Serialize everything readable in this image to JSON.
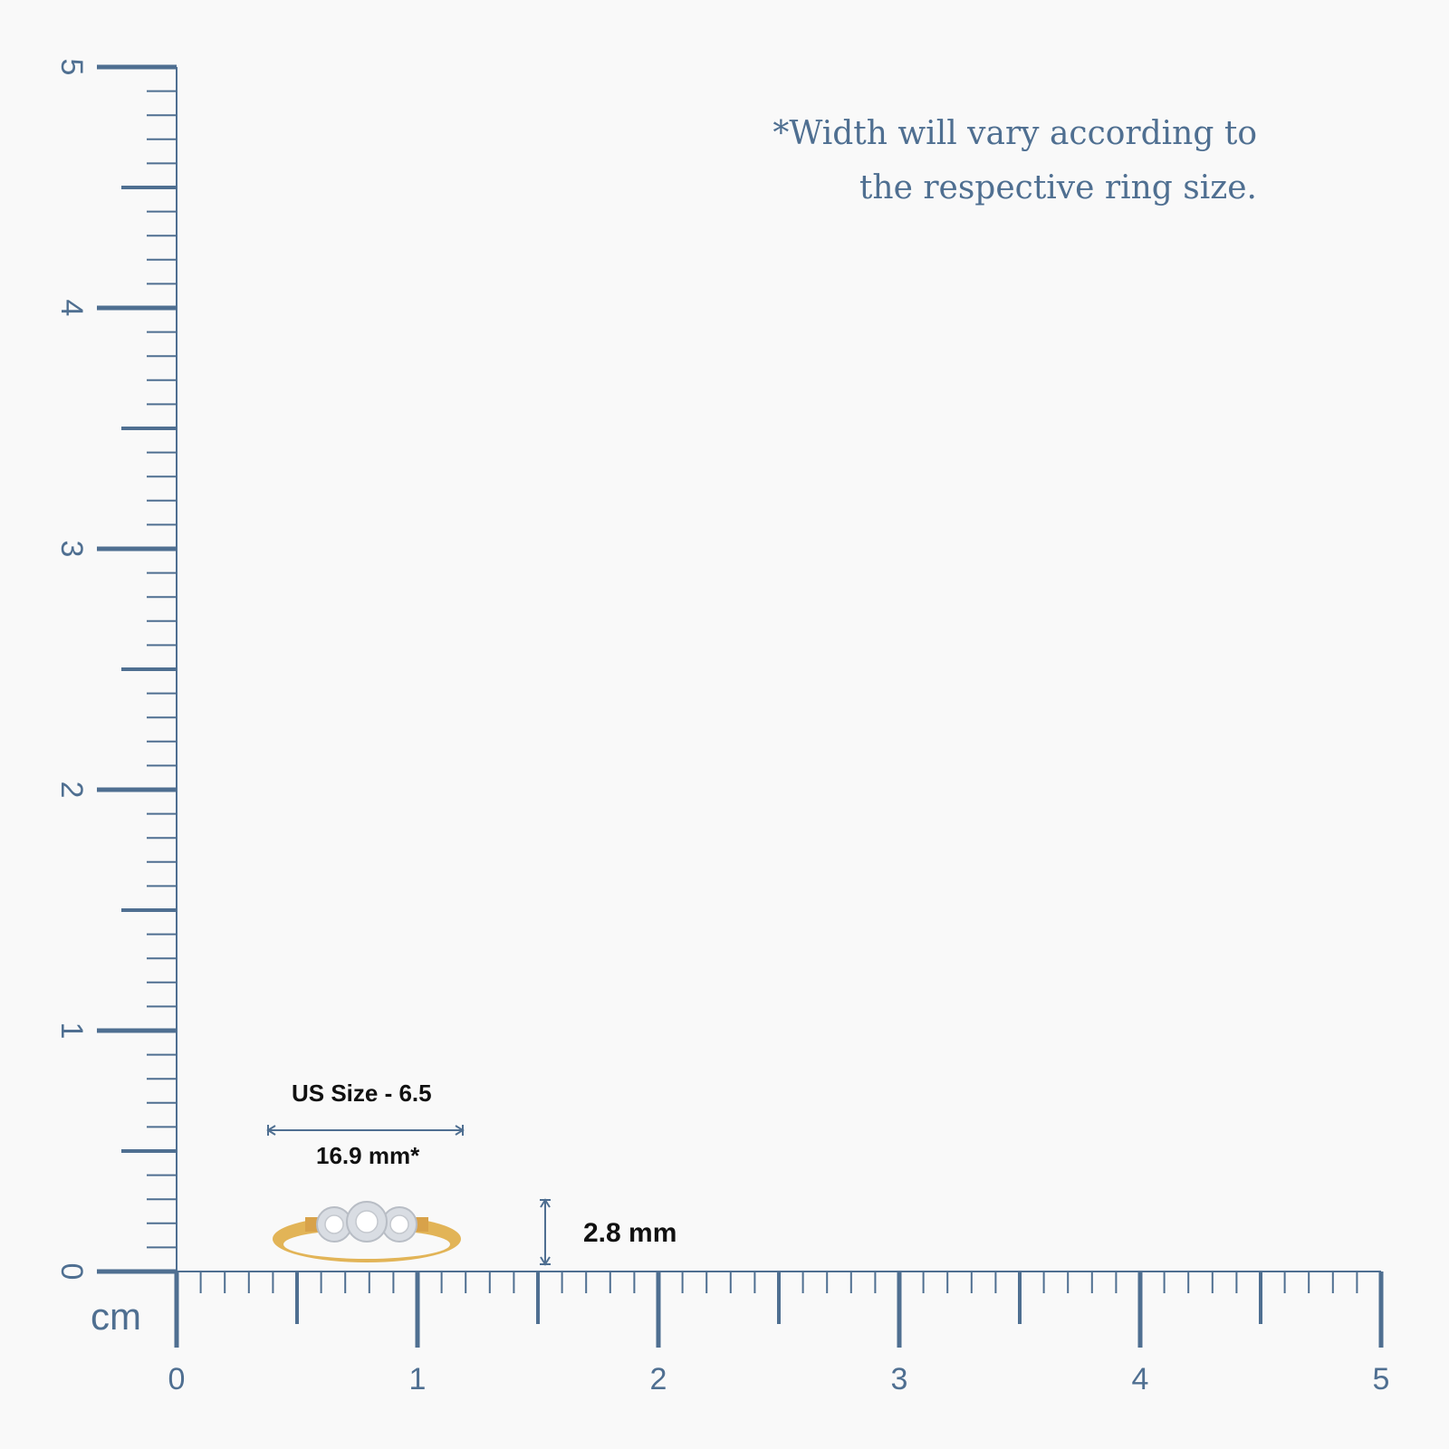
{
  "note": {
    "line1": "*Width will vary according to",
    "line2": "the respective ring size."
  },
  "ruler": {
    "unit": "cm",
    "x_labels": [
      "0",
      "1",
      "2",
      "3",
      "4",
      "5"
    ],
    "y_labels": [
      "0",
      "1",
      "2",
      "3",
      "4",
      "5"
    ],
    "color": "#4f6f91"
  },
  "ring": {
    "size_label": "US Size - 6.5",
    "width_label": "16.9 mm*",
    "height_label": "2.8 mm",
    "gold_color": "#e2b457",
    "bezel_color": "#d9dde3"
  }
}
